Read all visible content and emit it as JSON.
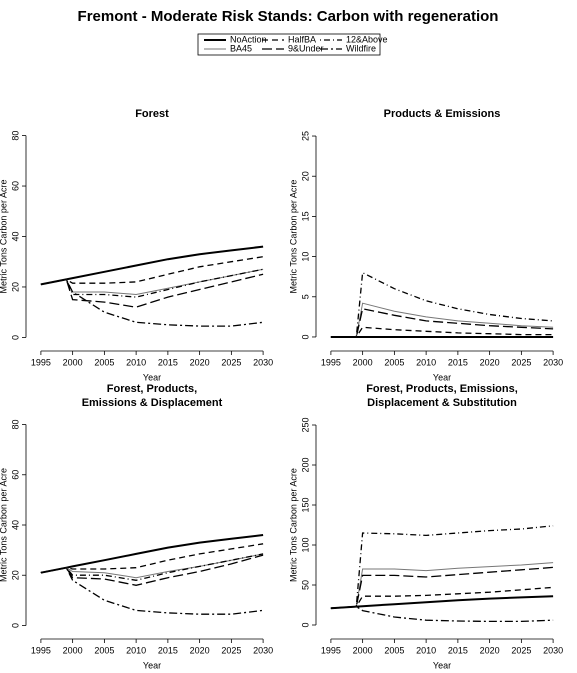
{
  "title": "Fremont  - Moderate Risk Stands: Carbon with regeneration",
  "chart_data": [
    {
      "type": "line",
      "title": [
        "Forest"
      ],
      "x_label": "Year",
      "y_label": "Metric Tons Carbon per Acre",
      "x": [
        1995,
        1999,
        2000,
        2005,
        2010,
        2015,
        2020,
        2025,
        2030
      ],
      "xlim": [
        1993.6,
        2031.4
      ],
      "xticks": [
        1995,
        2000,
        2005,
        2010,
        2015,
        2020,
        2025,
        2030
      ],
      "ylim": [
        -3,
        83
      ],
      "yticks": [
        0,
        20,
        40,
        60,
        80
      ],
      "series": [
        {
          "name": "NoAction",
          "color": "#000000",
          "dash": "none",
          "width": 2,
          "values": [
            21,
            23,
            23.5,
            26,
            28.5,
            31,
            33,
            34.5,
            36
          ]
        },
        {
          "name": "BA45",
          "color": "#777777",
          "dash": "none",
          "width": 1,
          "values": [
            21,
            23,
            18,
            18,
            17,
            19.5,
            22,
            24.5,
            27
          ]
        },
        {
          "name": "HalfBA",
          "color": "#000000",
          "dash": "6,4",
          "width": 1.3,
          "values": [
            21,
            23,
            21.5,
            21.5,
            22,
            25,
            28,
            30,
            32
          ]
        },
        {
          "name": "9&Under",
          "color": "#000000",
          "dash": "10,4",
          "width": 1.3,
          "values": [
            21,
            23,
            15,
            14,
            12,
            16,
            19,
            22,
            25
          ]
        },
        {
          "name": "12&Above",
          "color": "#000000",
          "dash": "1,3,6,3",
          "width": 1.3,
          "values": [
            21,
            23,
            17,
            17,
            16,
            19,
            22,
            24.5,
            27
          ]
        },
        {
          "name": "Wildfire",
          "color": "#000000",
          "dash": "8,3,2,3",
          "width": 1.3,
          "values": [
            21,
            23,
            18,
            10,
            6,
            5,
            4.5,
            4.5,
            6
          ]
        }
      ]
    },
    {
      "type": "line",
      "title": [
        "Products & Emissions"
      ],
      "x_label": "Year",
      "y_label": "Metric Tons Carbon per Acre",
      "x": [
        1995,
        1999,
        2000,
        2005,
        2010,
        2015,
        2020,
        2025,
        2030
      ],
      "xlim": [
        1993.6,
        2031.4
      ],
      "xticks": [
        1995,
        2000,
        2005,
        2010,
        2015,
        2020,
        2025,
        2030
      ],
      "ylim": [
        -1,
        26
      ],
      "yticks": [
        0,
        5,
        10,
        15,
        20,
        25
      ],
      "series": [
        {
          "name": "NoAction",
          "color": "#000000",
          "dash": "none",
          "width": 2,
          "values": [
            0,
            0,
            0,
            0,
            0,
            0,
            0,
            0,
            0
          ]
        },
        {
          "name": "BA45",
          "color": "#777777",
          "dash": "none",
          "width": 1,
          "values": [
            0,
            0,
            4.2,
            3.2,
            2.5,
            2,
            1.7,
            1.4,
            1.2
          ]
        },
        {
          "name": "HalfBA",
          "color": "#000000",
          "dash": "6,4",
          "width": 1.3,
          "values": [
            0,
            0,
            1.2,
            0.9,
            0.7,
            0.5,
            0.4,
            0.3,
            0.3
          ]
        },
        {
          "name": "9&Under",
          "color": "#000000",
          "dash": "10,4",
          "width": 1.3,
          "values": [
            0,
            0,
            3.5,
            2.7,
            2,
            1.7,
            1.4,
            1.2,
            1
          ]
        },
        {
          "name": "12&Above",
          "color": "#000000",
          "dash": "1,3,6,3",
          "width": 1.3,
          "values": [
            0,
            0,
            8,
            6,
            4.5,
            3.5,
            2.8,
            2.3,
            2
          ]
        },
        {
          "name": "Wildfire",
          "color": "#000000",
          "dash": "8,3,2,3",
          "width": 1.3,
          "values": [
            0,
            0,
            0,
            0,
            0,
            0,
            0,
            0,
            0
          ]
        }
      ]
    },
    {
      "type": "line",
      "title": [
        "Forest, Products,",
        "Emissions & Displacement"
      ],
      "x_label": "Year",
      "y_label": "Metric Tons Carbon per Acre",
      "x": [
        1995,
        1999,
        2000,
        2005,
        2010,
        2015,
        2020,
        2025,
        2030
      ],
      "xlim": [
        1993.6,
        2031.4
      ],
      "xticks": [
        1995,
        2000,
        2005,
        2010,
        2015,
        2020,
        2025,
        2030
      ],
      "ylim": [
        -3,
        83
      ],
      "yticks": [
        0,
        20,
        40,
        60,
        80
      ],
      "series": [
        {
          "name": "NoAction",
          "color": "#000000",
          "dash": "none",
          "width": 2,
          "values": [
            21,
            23,
            23.5,
            26,
            28.5,
            31,
            33,
            34.5,
            36
          ]
        },
        {
          "name": "BA45",
          "color": "#777777",
          "dash": "none",
          "width": 1,
          "values": [
            21,
            23,
            21.5,
            21,
            19,
            21.5,
            23.5,
            26,
            28.5
          ]
        },
        {
          "name": "HalfBA",
          "color": "#000000",
          "dash": "6,4",
          "width": 1.3,
          "values": [
            21,
            23,
            22.5,
            22.5,
            23,
            26,
            28.5,
            30.5,
            32.5
          ]
        },
        {
          "name": "9&Under",
          "color": "#000000",
          "dash": "10,4",
          "width": 1.3,
          "values": [
            21,
            23,
            19,
            18.5,
            16,
            19,
            21.5,
            24.5,
            28
          ]
        },
        {
          "name": "12&Above",
          "color": "#000000",
          "dash": "1,3,6,3",
          "width": 1.3,
          "values": [
            21,
            23,
            20,
            20,
            18,
            21,
            23.5,
            26,
            28.5
          ]
        },
        {
          "name": "Wildfire",
          "color": "#000000",
          "dash": "8,3,2,3",
          "width": 1.3,
          "values": [
            21,
            23,
            18,
            10,
            6,
            5,
            4.5,
            4.5,
            6
          ]
        }
      ]
    },
    {
      "type": "line",
      "title": [
        "Forest, Products, Emissions,",
        "Displacement & Substitution"
      ],
      "x_label": "Year",
      "y_label": "Metric Tons Carbon per Acre",
      "x": [
        1995,
        1999,
        2000,
        2005,
        2010,
        2015,
        2020,
        2025,
        2030
      ],
      "xlim": [
        1993.6,
        2031.4
      ],
      "xticks": [
        1995,
        2000,
        2005,
        2010,
        2015,
        2020,
        2025,
        2030
      ],
      "ylim": [
        -10,
        260
      ],
      "yticks": [
        0,
        50,
        100,
        150,
        200,
        250
      ],
      "series": [
        {
          "name": "NoAction",
          "color": "#000000",
          "dash": "none",
          "width": 2,
          "values": [
            21,
            23,
            23.5,
            26,
            28.5,
            31,
            33,
            34.5,
            36
          ]
        },
        {
          "name": "BA45",
          "color": "#777777",
          "dash": "none",
          "width": 1,
          "values": [
            21,
            23,
            70,
            70,
            68,
            71,
            73,
            75,
            78
          ]
        },
        {
          "name": "HalfBA",
          "color": "#000000",
          "dash": "6,4",
          "width": 1.3,
          "values": [
            21,
            23,
            36,
            36,
            37,
            39,
            41,
            44,
            47
          ]
        },
        {
          "name": "9&Under",
          "color": "#000000",
          "dash": "10,4",
          "width": 1.3,
          "values": [
            21,
            23,
            62,
            62,
            60,
            63,
            66,
            69,
            72
          ]
        },
        {
          "name": "12&Above",
          "color": "#000000",
          "dash": "1,3,6,3",
          "width": 1.3,
          "values": [
            21,
            23,
            115,
            114,
            112,
            115,
            118,
            120,
            124
          ]
        },
        {
          "name": "Wildfire",
          "color": "#000000",
          "dash": "8,3,2,3",
          "width": 1.3,
          "values": [
            21,
            23,
            18,
            10,
            6,
            5,
            4.5,
            4.5,
            6
          ]
        }
      ]
    }
  ]
}
